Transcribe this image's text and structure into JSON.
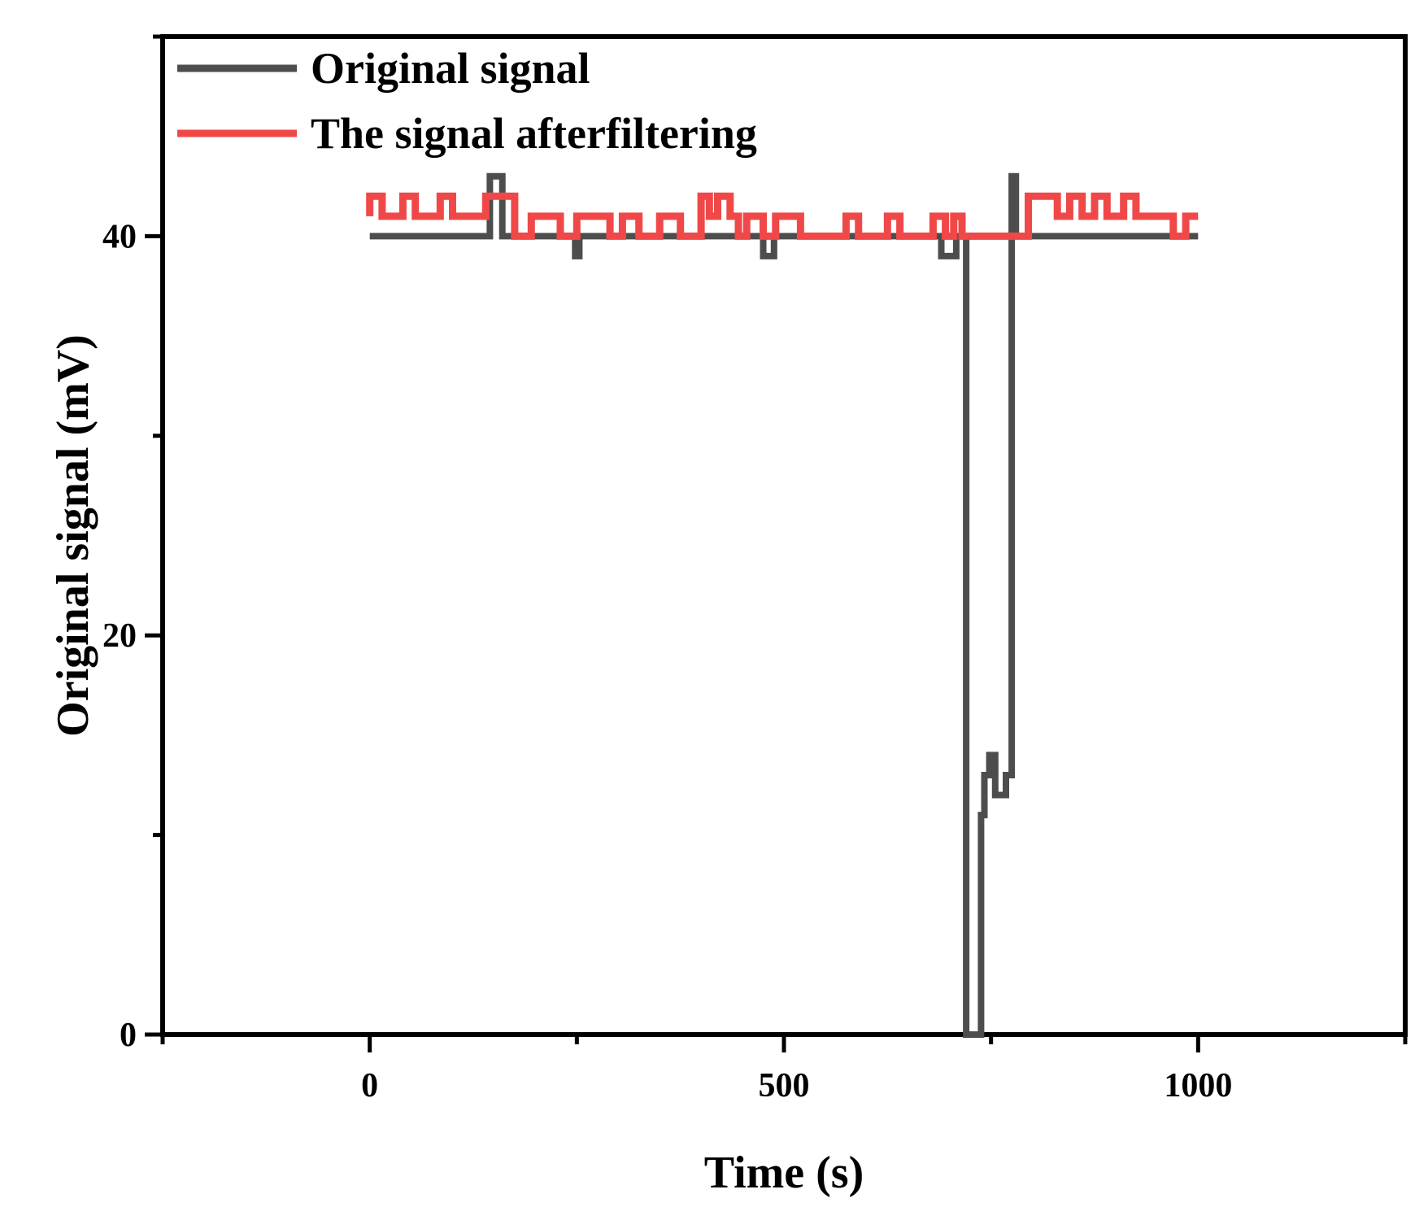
{
  "chart_data": {
    "type": "line",
    "title": "",
    "xlabel": "Time (s)",
    "ylabel": "Original signal (mV)",
    "xlim": [
      -250,
      1250
    ],
    "ylim": [
      0,
      50
    ],
    "xticks": [
      0,
      500,
      1000
    ],
    "xtick_labels": [
      "0",
      "500",
      "1000"
    ],
    "yticks": [
      0,
      20,
      40
    ],
    "ytick_labels": [
      "0",
      "20",
      "40"
    ],
    "grid": false,
    "legend_position": "top-left",
    "series": [
      {
        "name": "Original signal",
        "color": "#4d4d4d",
        "x": [
          0,
          145,
          145,
          160,
          160,
          248,
          248,
          253,
          253,
          475,
          475,
          488,
          488,
          690,
          690,
          708,
          708,
          720,
          720,
          738,
          738,
          742,
          742,
          748,
          748,
          755,
          755,
          768,
          768,
          775,
          775,
          780,
          780,
          800,
          1000
        ],
        "y": [
          40,
          40,
          43,
          43,
          40,
          40,
          39,
          39,
          40,
          40,
          39,
          39,
          40,
          40,
          39,
          39,
          40,
          40,
          0,
          0,
          11,
          11,
          13,
          13,
          14,
          14,
          12,
          12,
          13,
          13,
          43,
          43,
          40,
          40,
          40
        ]
      },
      {
        "name": "The signal afterfiltering",
        "color": "#f04848",
        "x": [
          0,
          0,
          15,
          15,
          40,
          40,
          55,
          55,
          85,
          85,
          100,
          100,
          140,
          140,
          175,
          175,
          195,
          195,
          230,
          230,
          250,
          250,
          290,
          290,
          305,
          305,
          325,
          325,
          350,
          350,
          375,
          375,
          400,
          400,
          410,
          410,
          420,
          420,
          435,
          435,
          445,
          445,
          455,
          455,
          475,
          475,
          490,
          490,
          520,
          520,
          535,
          535,
          575,
          575,
          590,
          590,
          625,
          625,
          640,
          640,
          680,
          680,
          695,
          695,
          705,
          705,
          715,
          715,
          730,
          730,
          795,
          795,
          830,
          830,
          845,
          845,
          860,
          860,
          875,
          875,
          890,
          890,
          910,
          910,
          925,
          925,
          970,
          970,
          985,
          985,
          1000
        ],
        "y": [
          41,
          42,
          42,
          41,
          41,
          42,
          42,
          41,
          41,
          42,
          42,
          41,
          41,
          42,
          42,
          40,
          40,
          41,
          41,
          40,
          40,
          41,
          41,
          40,
          40,
          41,
          41,
          40,
          40,
          41,
          41,
          40,
          40,
          42,
          42,
          41,
          41,
          42,
          42,
          41,
          41,
          40,
          40,
          41,
          41,
          40,
          40,
          41,
          41,
          40,
          40,
          40,
          40,
          41,
          41,
          40,
          40,
          41,
          41,
          40,
          40,
          41,
          41,
          40,
          40,
          41,
          41,
          40,
          40,
          40,
          40,
          42,
          42,
          41,
          41,
          42,
          42,
          41,
          41,
          42,
          42,
          41,
          41,
          42,
          42,
          41,
          41,
          40,
          40,
          41,
          41
        ]
      }
    ]
  }
}
